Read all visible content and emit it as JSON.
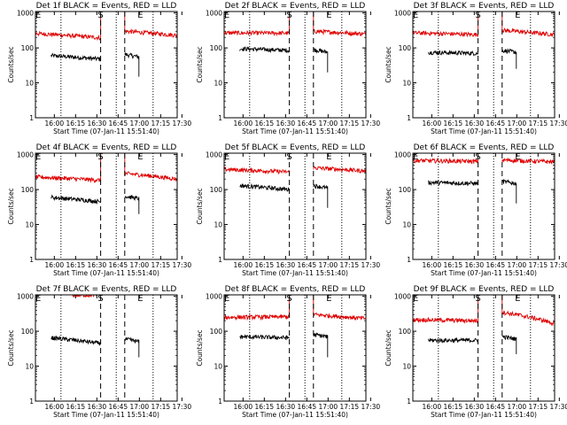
{
  "page": {
    "background": "#ffffff"
  },
  "colors": {
    "events": "#000000",
    "lld": "#e00000",
    "axes": "#000000"
  },
  "shared_axes": {
    "y_ticks": [
      "1",
      "10",
      "100",
      "1000"
    ],
    "y_label": "Counts/sec",
    "x_ticks": [
      "16:00",
      "16:15",
      "16:30",
      "16:45",
      "17:00",
      "17:15",
      "17:30"
    ],
    "x_label": "Start Time (07-Jan-11 15:51:40)"
  },
  "chart_data": [
    {
      "type": "line",
      "title": "Det 1f BLACK = Events, RED = LLD",
      "xlabel": "Start Time (07-Jan-11 15:51:40)",
      "ylabel": "Counts/sec",
      "y_scale": "log",
      "ylim": [
        1,
        1100
      ],
      "x_unit": "minutes after start",
      "xlim": [
        0,
        100
      ],
      "markers": [
        {
          "label": "E",
          "x": 2
        },
        {
          "label": "S",
          "x": 46
        },
        {
          "label": "E",
          "x": 74
        }
      ],
      "vlines_dotted": [
        18,
        57,
        83
      ],
      "vlines_dashed": [
        46,
        63
      ],
      "series": [
        {
          "name": "Events",
          "color": "#000000",
          "segments": [
            {
              "x": [
                11,
                46
              ],
              "y0": 60,
              "y1": 48
            },
            {
              "x": [
                63,
                73
              ],
              "y0": 65,
              "y1": 55,
              "tail": 15
            }
          ]
        },
        {
          "name": "LLD",
          "color": "#e00000",
          "segments": [
            {
              "x": [
                0,
                46
              ],
              "y0": 260,
              "y1": 195,
              "spike_left": true,
              "spike_right": true
            },
            {
              "x": [
                63,
                100
              ],
              "y0": 300,
              "y1": 230,
              "spike_left": true
            }
          ]
        }
      ]
    },
    {
      "type": "line",
      "title": "Det 2f BLACK = Events, RED = LLD",
      "xlabel": "Start Time (07-Jan-11 15:51:40)",
      "ylabel": "Counts/sec",
      "y_scale": "log",
      "ylim": [
        1,
        1100
      ],
      "x_unit": "minutes after start",
      "xlim": [
        0,
        100
      ],
      "markers": [
        {
          "label": "E",
          "x": 2
        },
        {
          "label": "S",
          "x": 46
        },
        {
          "label": "E",
          "x": 74
        }
      ],
      "vlines_dotted": [
        18,
        57,
        83
      ],
      "vlines_dashed": [
        46,
        63
      ],
      "series": [
        {
          "name": "Events",
          "color": "#000000",
          "segments": [
            {
              "x": [
                11,
                46
              ],
              "y0": 95,
              "y1": 85
            },
            {
              "x": [
                63,
                73
              ],
              "y0": 90,
              "y1": 75,
              "tail": 20
            }
          ]
        },
        {
          "name": "LLD",
          "color": "#e00000",
          "segments": [
            {
              "x": [
                0,
                46
              ],
              "y0": 270,
              "y1": 265,
              "spike_left": true,
              "spike_right": true
            },
            {
              "x": [
                63,
                100
              ],
              "y0": 300,
              "y1": 250,
              "spike_left": true
            }
          ]
        }
      ]
    },
    {
      "type": "line",
      "title": "Det 3f BLACK = Events, RED = LLD",
      "xlabel": "Start Time (07-Jan-11 15:51:40)",
      "ylabel": "Counts/sec",
      "y_scale": "log",
      "ylim": [
        1,
        1100
      ],
      "x_unit": "minutes after start",
      "xlim": [
        0,
        100
      ],
      "markers": [
        {
          "label": "E",
          "x": 2
        },
        {
          "label": "S",
          "x": 46
        },
        {
          "label": "E",
          "x": 74
        }
      ],
      "vlines_dotted": [
        18,
        57,
        83
      ],
      "vlines_dashed": [
        46,
        63
      ],
      "series": [
        {
          "name": "Events",
          "color": "#000000",
          "segments": [
            {
              "x": [
                11,
                46
              ],
              "y0": 75,
              "y1": 70
            },
            {
              "x": [
                63,
                73
              ],
              "y0": 85,
              "y1": 75,
              "tail": 25
            }
          ]
        },
        {
          "name": "LLD",
          "color": "#e00000",
          "segments": [
            {
              "x": [
                0,
                46
              ],
              "y0": 270,
              "y1": 240,
              "spike_left": true,
              "spike_right": true
            },
            {
              "x": [
                63,
                100
              ],
              "y0": 320,
              "y1": 240,
              "spike_left": true
            }
          ]
        }
      ]
    },
    {
      "type": "line",
      "title": "Det 4f BLACK = Events, RED = LLD",
      "xlabel": "Start Time (07-Jan-11 15:51:40)",
      "ylabel": "Counts/sec",
      "y_scale": "log",
      "ylim": [
        1,
        1100
      ],
      "x_unit": "minutes after start",
      "xlim": [
        0,
        100
      ],
      "markers": [
        {
          "label": "E",
          "x": 2
        },
        {
          "label": "S",
          "x": 46
        },
        {
          "label": "E",
          "x": 74
        }
      ],
      "vlines_dotted": [
        18,
        57,
        83
      ],
      "vlines_dashed": [
        46,
        63
      ],
      "series": [
        {
          "name": "Events",
          "color": "#000000",
          "segments": [
            {
              "x": [
                11,
                46
              ],
              "y0": 60,
              "y1": 45
            },
            {
              "x": [
                63,
                73
              ],
              "y0": 65,
              "y1": 55,
              "tail": 20
            }
          ]
        },
        {
          "name": "LLD",
          "color": "#e00000",
          "segments": [
            {
              "x": [
                0,
                46
              ],
              "y0": 230,
              "y1": 185,
              "spike_left": true,
              "spike_right": true
            },
            {
              "x": [
                63,
                100
              ],
              "y0": 290,
              "y1": 200,
              "spike_left": true
            }
          ]
        }
      ]
    },
    {
      "type": "line",
      "title": "Det 5f BLACK = Events, RED = LLD",
      "xlabel": "Start Time (07-Jan-11 15:51:40)",
      "ylabel": "Counts/sec",
      "y_scale": "log",
      "ylim": [
        1,
        1100
      ],
      "x_unit": "minutes after start",
      "xlim": [
        0,
        100
      ],
      "markers": [
        {
          "label": "E",
          "x": 2
        },
        {
          "label": "S",
          "x": 46
        },
        {
          "label": "E",
          "x": 74
        }
      ],
      "vlines_dotted": [
        18,
        57,
        83
      ],
      "vlines_dashed": [
        46,
        63
      ],
      "series": [
        {
          "name": "Events",
          "color": "#000000",
          "segments": [
            {
              "x": [
                11,
                46
              ],
              "y0": 130,
              "y1": 100
            },
            {
              "x": [
                63,
                73
              ],
              "y0": 130,
              "y1": 110,
              "tail": 30
            }
          ]
        },
        {
          "name": "LLD",
          "color": "#e00000",
          "segments": [
            {
              "x": [
                0,
                46
              ],
              "y0": 380,
              "y1": 320
            },
            {
              "x": [
                63,
                100
              ],
              "y0": 420,
              "y1": 340
            }
          ]
        }
      ]
    },
    {
      "type": "line",
      "title": "Det 6f BLACK = Events, RED = LLD",
      "xlabel": "Start Time (07-Jan-11 15:51:40)",
      "ylabel": "Counts/sec",
      "y_scale": "log",
      "ylim": [
        1,
        1100
      ],
      "x_unit": "minutes after start",
      "xlim": [
        0,
        100
      ],
      "markers": [
        {
          "label": "E",
          "x": 2
        },
        {
          "label": "S",
          "x": 46
        },
        {
          "label": "E",
          "x": 74
        }
      ],
      "vlines_dotted": [
        18,
        57,
        83
      ],
      "vlines_dashed": [
        46,
        63
      ],
      "series": [
        {
          "name": "Events",
          "color": "#000000",
          "segments": [
            {
              "x": [
                11,
                46
              ],
              "y0": 160,
              "y1": 150
            },
            {
              "x": [
                63,
                73
              ],
              "y0": 170,
              "y1": 150,
              "tail": 40
            }
          ]
        },
        {
          "name": "LLD",
          "color": "#e00000",
          "segments": [
            {
              "x": [
                0,
                46
              ],
              "y0": 680,
              "y1": 640
            },
            {
              "x": [
                63,
                100
              ],
              "y0": 700,
              "y1": 620
            }
          ]
        }
      ]
    },
    {
      "type": "line",
      "title": "Det 7f BLACK = Events, RED = LLD",
      "xlabel": "Start Time (07-Jan-11 15:51:40)",
      "ylabel": "Counts/sec",
      "y_scale": "log",
      "ylim": [
        1,
        1100
      ],
      "x_unit": "minutes after start",
      "xlim": [
        0,
        100
      ],
      "markers": [
        {
          "label": "E",
          "x": 2
        },
        {
          "label": "S",
          "x": 46
        },
        {
          "label": "E",
          "x": 74
        }
      ],
      "vlines_dotted": [
        18,
        57,
        83
      ],
      "vlines_dashed": [
        46,
        63
      ],
      "series": [
        {
          "name": "Events",
          "color": "#000000",
          "segments": [
            {
              "x": [
                11,
                46
              ],
              "y0": 65,
              "y1": 45
            },
            {
              "x": [
                63,
                73
              ],
              "y0": 60,
              "y1": 50,
              "tail": 18
            }
          ]
        },
        {
          "name": "LLD",
          "color": "#e00000",
          "segments": [
            {
              "x": [
                26,
                43
              ],
              "y0": 1080,
              "y1": 1080
            }
          ]
        }
      ]
    },
    {
      "type": "line",
      "title": "Det 8f BLACK = Events, RED = LLD",
      "xlabel": "Start Time (07-Jan-11 15:51:40)",
      "ylabel": "Counts/sec",
      "y_scale": "log",
      "ylim": [
        1,
        1100
      ],
      "x_unit": "minutes after start",
      "xlim": [
        0,
        100
      ],
      "markers": [
        {
          "label": "E",
          "x": 2
        },
        {
          "label": "S",
          "x": 46
        },
        {
          "label": "E",
          "x": 74
        }
      ],
      "vlines_dotted": [
        18,
        57,
        83
      ],
      "vlines_dashed": [
        46,
        63
      ],
      "series": [
        {
          "name": "Events",
          "color": "#000000",
          "segments": [
            {
              "x": [
                11,
                46
              ],
              "y0": 70,
              "y1": 65
            },
            {
              "x": [
                63,
                73
              ],
              "y0": 80,
              "y1": 70,
              "tail": 18
            }
          ]
        },
        {
          "name": "LLD",
          "color": "#e00000",
          "segments": [
            {
              "x": [
                0,
                46
              ],
              "y0": 250,
              "y1": 260,
              "spike_left": true,
              "spike_right": true
            },
            {
              "x": [
                63,
                100
              ],
              "y0": 300,
              "y1": 230,
              "spike_left": true
            }
          ]
        }
      ]
    },
    {
      "type": "line",
      "title": "Det 9f BLACK = Events, RED = LLD",
      "xlabel": "Start Time (07-Jan-11 15:51:40)",
      "ylabel": "Counts/sec",
      "y_scale": "log",
      "ylim": [
        1,
        1100
      ],
      "x_unit": "minutes after start",
      "xlim": [
        0,
        100
      ],
      "markers": [
        {
          "label": "E",
          "x": 2
        },
        {
          "label": "S",
          "x": 46
        },
        {
          "label": "E",
          "x": 74
        }
      ],
      "vlines_dotted": [
        18,
        57,
        83
      ],
      "vlines_dashed": [
        46,
        63
      ],
      "series": [
        {
          "name": "Events",
          "color": "#000000",
          "segments": [
            {
              "x": [
                11,
                46
              ],
              "y0": 55,
              "y1": 55
            },
            {
              "x": [
                63,
                73
              ],
              "y0": 70,
              "y1": 60,
              "tail": 22
            }
          ]
        },
        {
          "name": "LLD",
          "color": "#e00000",
          "segments": [
            {
              "x": [
                0,
                46
              ],
              "y0": 215,
              "y1": 200,
              "spike_right": true
            },
            {
              "x": [
                63,
                100
              ],
              "y0": 350,
              "y1": 165,
              "spike_left": true
            }
          ]
        }
      ]
    }
  ]
}
